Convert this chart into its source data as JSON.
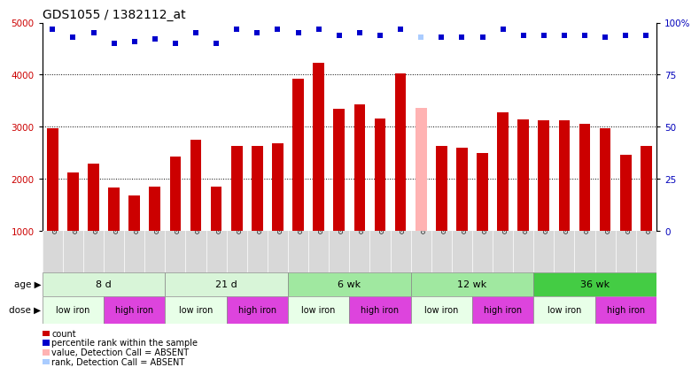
{
  "title": "GDS1055 / 1382112_at",
  "samples": [
    "GSM33580",
    "GSM33581",
    "GSM33582",
    "GSM33577",
    "GSM33578",
    "GSM33579",
    "GSM33574",
    "GSM33575",
    "GSM33576",
    "GSM33571",
    "GSM33572",
    "GSM33573",
    "GSM33568",
    "GSM33569",
    "GSM33570",
    "GSM33565",
    "GSM33566",
    "GSM33567",
    "GSM33562",
    "GSM33563",
    "GSM33564",
    "GSM33559",
    "GSM33560",
    "GSM33561",
    "GSM33555",
    "GSM33556",
    "GSM33557",
    "GSM33551",
    "GSM33552",
    "GSM33553"
  ],
  "bar_values": [
    2980,
    2130,
    2300,
    1840,
    1680,
    1860,
    2430,
    2750,
    1860,
    2640,
    2640,
    2680,
    3930,
    4230,
    3350,
    3430,
    3160,
    4030,
    3360,
    2640,
    2600,
    2500,
    3270,
    3140,
    3120,
    3130,
    3060,
    2980,
    2460,
    2640
  ],
  "bar_colors": [
    "#cc0000",
    "#cc0000",
    "#cc0000",
    "#cc0000",
    "#cc0000",
    "#cc0000",
    "#cc0000",
    "#cc0000",
    "#cc0000",
    "#cc0000",
    "#cc0000",
    "#cc0000",
    "#cc0000",
    "#cc0000",
    "#cc0000",
    "#cc0000",
    "#cc0000",
    "#cc0000",
    "#ffb3b3",
    "#cc0000",
    "#cc0000",
    "#cc0000",
    "#cc0000",
    "#cc0000",
    "#cc0000",
    "#cc0000",
    "#cc0000",
    "#cc0000",
    "#cc0000",
    "#cc0000"
  ],
  "perc_y": [
    97,
    93,
    95,
    90,
    91,
    92,
    90,
    95,
    90,
    97,
    95,
    97,
    95,
    97,
    94,
    95,
    94,
    97,
    93,
    93,
    93,
    93,
    97,
    94,
    94,
    94,
    94,
    93,
    94,
    94
  ],
  "perc_colors": [
    "#0000cc",
    "#0000cc",
    "#0000cc",
    "#0000cc",
    "#0000cc",
    "#0000cc",
    "#0000cc",
    "#0000cc",
    "#0000cc",
    "#0000cc",
    "#0000cc",
    "#0000cc",
    "#0000cc",
    "#0000cc",
    "#0000cc",
    "#0000cc",
    "#0000cc",
    "#0000cc",
    "#aaccff",
    "#0000cc",
    "#0000cc",
    "#0000cc",
    "#0000cc",
    "#0000cc",
    "#0000cc",
    "#0000cc",
    "#0000cc",
    "#0000cc",
    "#0000cc",
    "#0000cc"
  ],
  "ylim_left": [
    1000,
    5000
  ],
  "ylim_right": [
    0,
    100
  ],
  "yticks_left": [
    1000,
    2000,
    3000,
    4000,
    5000
  ],
  "yticks_right": [
    0,
    25,
    50,
    75,
    100
  ],
  "age_groups": [
    {
      "label": "8 d",
      "start": 0,
      "end": 6,
      "color": "#d8f5d8"
    },
    {
      "label": "21 d",
      "start": 6,
      "end": 12,
      "color": "#d8f5d8"
    },
    {
      "label": "6 wk",
      "start": 12,
      "end": 18,
      "color": "#a0e8a0"
    },
    {
      "label": "12 wk",
      "start": 18,
      "end": 24,
      "color": "#a0e8a0"
    },
    {
      "label": "36 wk",
      "start": 24,
      "end": 30,
      "color": "#44cc44"
    }
  ],
  "dose_groups": [
    {
      "label": "low iron",
      "start": 0,
      "end": 3,
      "color": "#e8ffe8"
    },
    {
      "label": "high iron",
      "start": 3,
      "end": 6,
      "color": "#dd44dd"
    },
    {
      "label": "low iron",
      "start": 6,
      "end": 9,
      "color": "#e8ffe8"
    },
    {
      "label": "high iron",
      "start": 9,
      "end": 12,
      "color": "#dd44dd"
    },
    {
      "label": "low iron",
      "start": 12,
      "end": 15,
      "color": "#e8ffe8"
    },
    {
      "label": "high iron",
      "start": 15,
      "end": 18,
      "color": "#dd44dd"
    },
    {
      "label": "low iron",
      "start": 18,
      "end": 21,
      "color": "#e8ffe8"
    },
    {
      "label": "high iron",
      "start": 21,
      "end": 24,
      "color": "#dd44dd"
    },
    {
      "label": "low iron",
      "start": 24,
      "end": 27,
      "color": "#e8ffe8"
    },
    {
      "label": "high iron",
      "start": 27,
      "end": 30,
      "color": "#dd44dd"
    }
  ],
  "legend_items": [
    {
      "label": "count",
      "color": "#cc0000"
    },
    {
      "label": "percentile rank within the sample",
      "color": "#0000cc"
    },
    {
      "label": "value, Detection Call = ABSENT",
      "color": "#ffb3b3"
    },
    {
      "label": "rank, Detection Call = ABSENT",
      "color": "#aaccff"
    }
  ],
  "bg_color": "#ffffff",
  "title_fontsize": 10,
  "bar_width": 0.55
}
